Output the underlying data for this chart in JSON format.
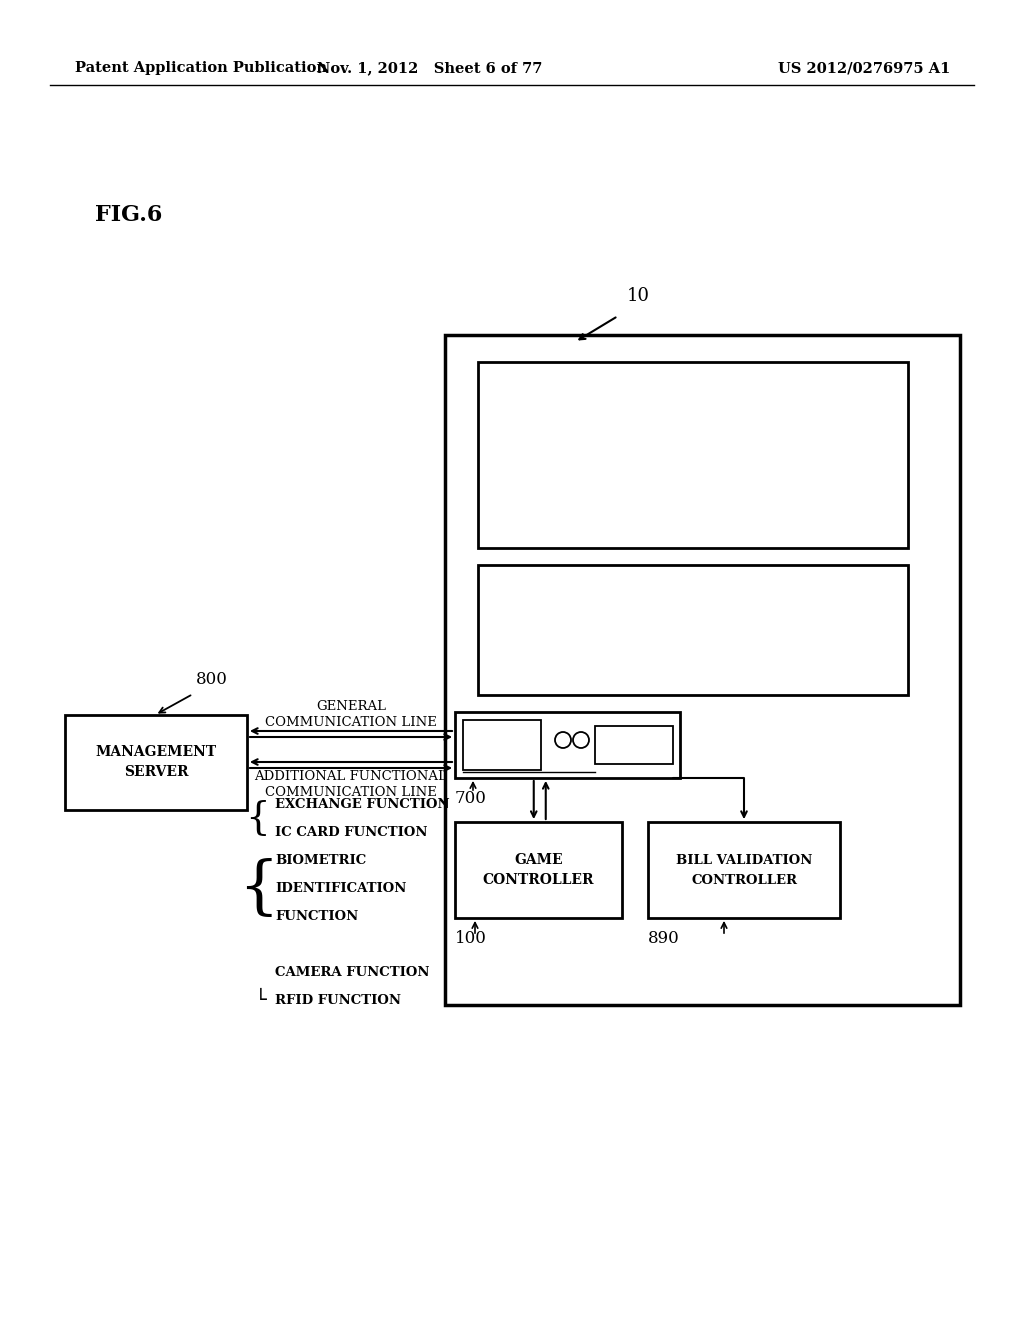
{
  "bg_color": "#ffffff",
  "header_left": "Patent Application Publication",
  "header_mid": "Nov. 1, 2012   Sheet 6 of 77",
  "header_right": "US 2012/0276975 A1",
  "fig_label": "FIG.6",
  "label_10": "10",
  "label_800": "800",
  "label_700": "700",
  "label_100": "100",
  "label_890": "890",
  "mgmt_server_lines": [
    "MANAGEMENT",
    "SERVER"
  ],
  "general_comm_line": [
    "GENERAL",
    "COMMUNICATION LINE"
  ],
  "additional_comm_line": [
    "ADDITIONAL FUNCTIONAL",
    "COMMUNICATION LINE"
  ],
  "game_controller": [
    "GAME",
    "CONTROLLER"
  ],
  "bill_validation": [
    "BILL VALIDATION",
    "CONTROLLER"
  ]
}
